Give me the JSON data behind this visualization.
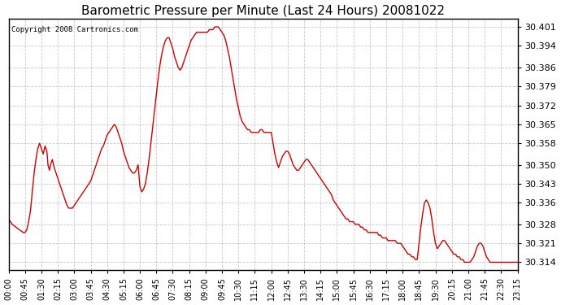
{
  "title": "Barometric Pressure per Minute (Last 24 Hours) 20081022",
  "copyright": "Copyright 2008 Cartronics.com",
  "line_color": "#cc0000",
  "bg_color": "#ffffff",
  "grid_color": "#bbbbbb",
  "yticks": [
    30.314,
    30.321,
    30.328,
    30.336,
    30.343,
    30.35,
    30.358,
    30.365,
    30.372,
    30.379,
    30.386,
    30.394,
    30.401
  ],
  "ylim": [
    30.311,
    30.404
  ],
  "xtick_labels": [
    "00:00",
    "00:45",
    "01:30",
    "02:15",
    "03:00",
    "03:45",
    "04:30",
    "05:15",
    "06:00",
    "06:45",
    "07:30",
    "08:15",
    "09:00",
    "09:45",
    "10:30",
    "11:15",
    "12:00",
    "12:45",
    "13:30",
    "14:15",
    "15:00",
    "15:45",
    "16:30",
    "17:15",
    "18:00",
    "18:45",
    "19:30",
    "20:15",
    "21:00",
    "21:45",
    "22:30",
    "23:15"
  ],
  "pressure_data": [
    [
      0,
      30.33
    ],
    [
      10,
      30.328
    ],
    [
      20,
      30.327
    ],
    [
      30,
      30.326
    ],
    [
      40,
      30.325
    ],
    [
      45,
      30.325
    ],
    [
      50,
      30.326
    ],
    [
      55,
      30.329
    ],
    [
      60,
      30.333
    ],
    [
      65,
      30.34
    ],
    [
      70,
      30.347
    ],
    [
      75,
      30.352
    ],
    [
      80,
      30.356
    ],
    [
      85,
      30.358
    ],
    [
      90,
      30.356
    ],
    [
      95,
      30.354
    ],
    [
      100,
      30.357
    ],
    [
      105,
      30.355
    ],
    [
      108,
      30.35
    ],
    [
      112,
      30.348
    ],
    [
      115,
      30.35
    ],
    [
      120,
      30.352
    ],
    [
      125,
      30.349
    ],
    [
      130,
      30.347
    ],
    [
      135,
      30.345
    ],
    [
      140,
      30.343
    ],
    [
      145,
      30.341
    ],
    [
      150,
      30.339
    ],
    [
      155,
      30.337
    ],
    [
      160,
      30.335
    ],
    [
      165,
      30.334
    ],
    [
      170,
      30.334
    ],
    [
      175,
      30.334
    ],
    [
      180,
      30.335
    ],
    [
      185,
      30.336
    ],
    [
      190,
      30.337
    ],
    [
      195,
      30.338
    ],
    [
      200,
      30.339
    ],
    [
      205,
      30.34
    ],
    [
      210,
      30.341
    ],
    [
      215,
      30.342
    ],
    [
      220,
      30.343
    ],
    [
      225,
      30.344
    ],
    [
      230,
      30.346
    ],
    [
      235,
      30.348
    ],
    [
      240,
      30.35
    ],
    [
      245,
      30.352
    ],
    [
      250,
      30.354
    ],
    [
      255,
      30.356
    ],
    [
      260,
      30.357
    ],
    [
      265,
      30.359
    ],
    [
      270,
      30.361
    ],
    [
      275,
      30.362
    ],
    [
      280,
      30.363
    ],
    [
      285,
      30.364
    ],
    [
      290,
      30.365
    ],
    [
      295,
      30.364
    ],
    [
      300,
      30.362
    ],
    [
      305,
      30.36
    ],
    [
      310,
      30.358
    ],
    [
      315,
      30.355
    ],
    [
      320,
      30.353
    ],
    [
      325,
      30.351
    ],
    [
      330,
      30.349
    ],
    [
      335,
      30.348
    ],
    [
      340,
      30.347
    ],
    [
      345,
      30.347
    ],
    [
      350,
      30.348
    ],
    [
      355,
      30.35
    ],
    [
      360,
      30.342
    ],
    [
      365,
      30.34
    ],
    [
      370,
      30.341
    ],
    [
      375,
      30.343
    ],
    [
      380,
      30.347
    ],
    [
      385,
      30.352
    ],
    [
      390,
      30.358
    ],
    [
      395,
      30.364
    ],
    [
      400,
      30.37
    ],
    [
      405,
      30.376
    ],
    [
      410,
      30.382
    ],
    [
      415,
      30.387
    ],
    [
      420,
      30.391
    ],
    [
      425,
      30.394
    ],
    [
      430,
      30.396
    ],
    [
      435,
      30.397
    ],
    [
      440,
      30.397
    ],
    [
      445,
      30.395
    ],
    [
      450,
      30.393
    ],
    [
      455,
      30.39
    ],
    [
      460,
      30.388
    ],
    [
      465,
      30.386
    ],
    [
      470,
      30.385
    ],
    [
      475,
      30.386
    ],
    [
      480,
      30.388
    ],
    [
      485,
      30.39
    ],
    [
      490,
      30.392
    ],
    [
      495,
      30.394
    ],
    [
      500,
      30.396
    ],
    [
      505,
      30.397
    ],
    [
      510,
      30.398
    ],
    [
      515,
      30.399
    ],
    [
      520,
      30.399
    ],
    [
      525,
      30.399
    ],
    [
      530,
      30.399
    ],
    [
      535,
      30.399
    ],
    [
      540,
      30.399
    ],
    [
      545,
      30.399
    ],
    [
      550,
      30.4
    ],
    [
      555,
      30.4
    ],
    [
      560,
      30.4
    ],
    [
      565,
      30.401
    ],
    [
      570,
      30.401
    ],
    [
      575,
      30.401
    ],
    [
      580,
      30.4
    ],
    [
      585,
      30.399
    ],
    [
      590,
      30.398
    ],
    [
      595,
      30.396
    ],
    [
      600,
      30.393
    ],
    [
      605,
      30.39
    ],
    [
      610,
      30.386
    ],
    [
      615,
      30.382
    ],
    [
      620,
      30.378
    ],
    [
      625,
      30.374
    ],
    [
      630,
      30.371
    ],
    [
      635,
      30.368
    ],
    [
      640,
      30.366
    ],
    [
      645,
      30.365
    ],
    [
      650,
      30.364
    ],
    [
      655,
      30.363
    ],
    [
      660,
      30.363
    ],
    [
      665,
      30.362
    ],
    [
      670,
      30.362
    ],
    [
      675,
      30.362
    ],
    [
      680,
      30.362
    ],
    [
      685,
      30.362
    ],
    [
      690,
      30.363
    ],
    [
      695,
      30.363
    ],
    [
      700,
      30.362
    ],
    [
      705,
      30.362
    ],
    [
      710,
      30.362
    ],
    [
      715,
      30.362
    ],
    [
      720,
      30.362
    ],
    [
      725,
      30.358
    ],
    [
      730,
      30.354
    ],
    [
      735,
      30.351
    ],
    [
      740,
      30.349
    ],
    [
      745,
      30.351
    ],
    [
      750,
      30.353
    ],
    [
      755,
      30.354
    ],
    [
      760,
      30.355
    ],
    [
      765,
      30.355
    ],
    [
      770,
      30.354
    ],
    [
      775,
      30.352
    ],
    [
      780,
      30.35
    ],
    [
      785,
      30.349
    ],
    [
      790,
      30.348
    ],
    [
      795,
      30.348
    ],
    [
      800,
      30.349
    ],
    [
      805,
      30.35
    ],
    [
      810,
      30.351
    ],
    [
      815,
      30.352
    ],
    [
      820,
      30.352
    ],
    [
      825,
      30.351
    ],
    [
      830,
      30.35
    ],
    [
      835,
      30.349
    ],
    [
      840,
      30.348
    ],
    [
      845,
      30.347
    ],
    [
      850,
      30.346
    ],
    [
      855,
      30.345
    ],
    [
      860,
      30.344
    ],
    [
      865,
      30.343
    ],
    [
      870,
      30.342
    ],
    [
      875,
      30.341
    ],
    [
      880,
      30.34
    ],
    [
      885,
      30.339
    ],
    [
      890,
      30.337
    ],
    [
      895,
      30.336
    ],
    [
      900,
      30.335
    ],
    [
      905,
      30.334
    ],
    [
      910,
      30.333
    ],
    [
      915,
      30.332
    ],
    [
      920,
      30.331
    ],
    [
      925,
      30.33
    ],
    [
      930,
      30.33
    ],
    [
      935,
      30.329
    ],
    [
      940,
      30.329
    ],
    [
      945,
      30.329
    ],
    [
      950,
      30.328
    ],
    [
      955,
      30.328
    ],
    [
      960,
      30.328
    ],
    [
      965,
      30.327
    ],
    [
      970,
      30.327
    ],
    [
      975,
      30.326
    ],
    [
      980,
      30.326
    ],
    [
      985,
      30.325
    ],
    [
      990,
      30.325
    ],
    [
      995,
      30.325
    ],
    [
      1000,
      30.325
    ],
    [
      1005,
      30.325
    ],
    [
      1010,
      30.325
    ],
    [
      1015,
      30.324
    ],
    [
      1020,
      30.324
    ],
    [
      1025,
      30.323
    ],
    [
      1030,
      30.323
    ],
    [
      1035,
      30.323
    ],
    [
      1040,
      30.322
    ],
    [
      1045,
      30.322
    ],
    [
      1050,
      30.322
    ],
    [
      1055,
      30.322
    ],
    [
      1060,
      30.322
    ],
    [
      1065,
      30.321
    ],
    [
      1070,
      30.321
    ],
    [
      1075,
      30.321
    ],
    [
      1080,
      30.32
    ],
    [
      1085,
      30.319
    ],
    [
      1090,
      30.318
    ],
    [
      1095,
      30.317
    ],
    [
      1100,
      30.317
    ],
    [
      1105,
      30.316
    ],
    [
      1110,
      30.316
    ],
    [
      1115,
      30.315
    ],
    [
      1120,
      30.315
    ],
    [
      1125,
      30.321
    ],
    [
      1130,
      30.327
    ],
    [
      1135,
      30.332
    ],
    [
      1140,
      30.336
    ],
    [
      1145,
      30.337
    ],
    [
      1150,
      30.336
    ],
    [
      1155,
      30.334
    ],
    [
      1160,
      30.33
    ],
    [
      1165,
      30.325
    ],
    [
      1170,
      30.321
    ],
    [
      1175,
      30.319
    ],
    [
      1180,
      30.32
    ],
    [
      1185,
      30.321
    ],
    [
      1190,
      30.322
    ],
    [
      1195,
      30.322
    ],
    [
      1200,
      30.321
    ],
    [
      1205,
      30.32
    ],
    [
      1210,
      30.319
    ],
    [
      1215,
      30.318
    ],
    [
      1220,
      30.317
    ],
    [
      1225,
      30.317
    ],
    [
      1230,
      30.316
    ],
    [
      1235,
      30.316
    ],
    [
      1240,
      30.315
    ],
    [
      1245,
      30.315
    ],
    [
      1250,
      30.314
    ],
    [
      1255,
      30.314
    ],
    [
      1260,
      30.314
    ],
    [
      1265,
      30.314
    ],
    [
      1270,
      30.315
    ],
    [
      1275,
      30.316
    ],
    [
      1280,
      30.318
    ],
    [
      1285,
      30.32
    ],
    [
      1290,
      30.321
    ],
    [
      1295,
      30.321
    ],
    [
      1300,
      30.32
    ],
    [
      1305,
      30.318
    ],
    [
      1310,
      30.316
    ],
    [
      1315,
      30.315
    ],
    [
      1320,
      30.314
    ],
    [
      1325,
      30.314
    ],
    [
      1330,
      30.314
    ],
    [
      1335,
      30.314
    ],
    [
      1340,
      30.314
    ],
    [
      1345,
      30.314
    ],
    [
      1350,
      30.314
    ],
    [
      1355,
      30.314
    ],
    [
      1360,
      30.314
    ],
    [
      1365,
      30.314
    ],
    [
      1370,
      30.314
    ],
    [
      1375,
      30.314
    ],
    [
      1380,
      30.314
    ],
    [
      1385,
      30.314
    ],
    [
      1390,
      30.314
    ],
    [
      1395,
      30.314
    ]
  ]
}
